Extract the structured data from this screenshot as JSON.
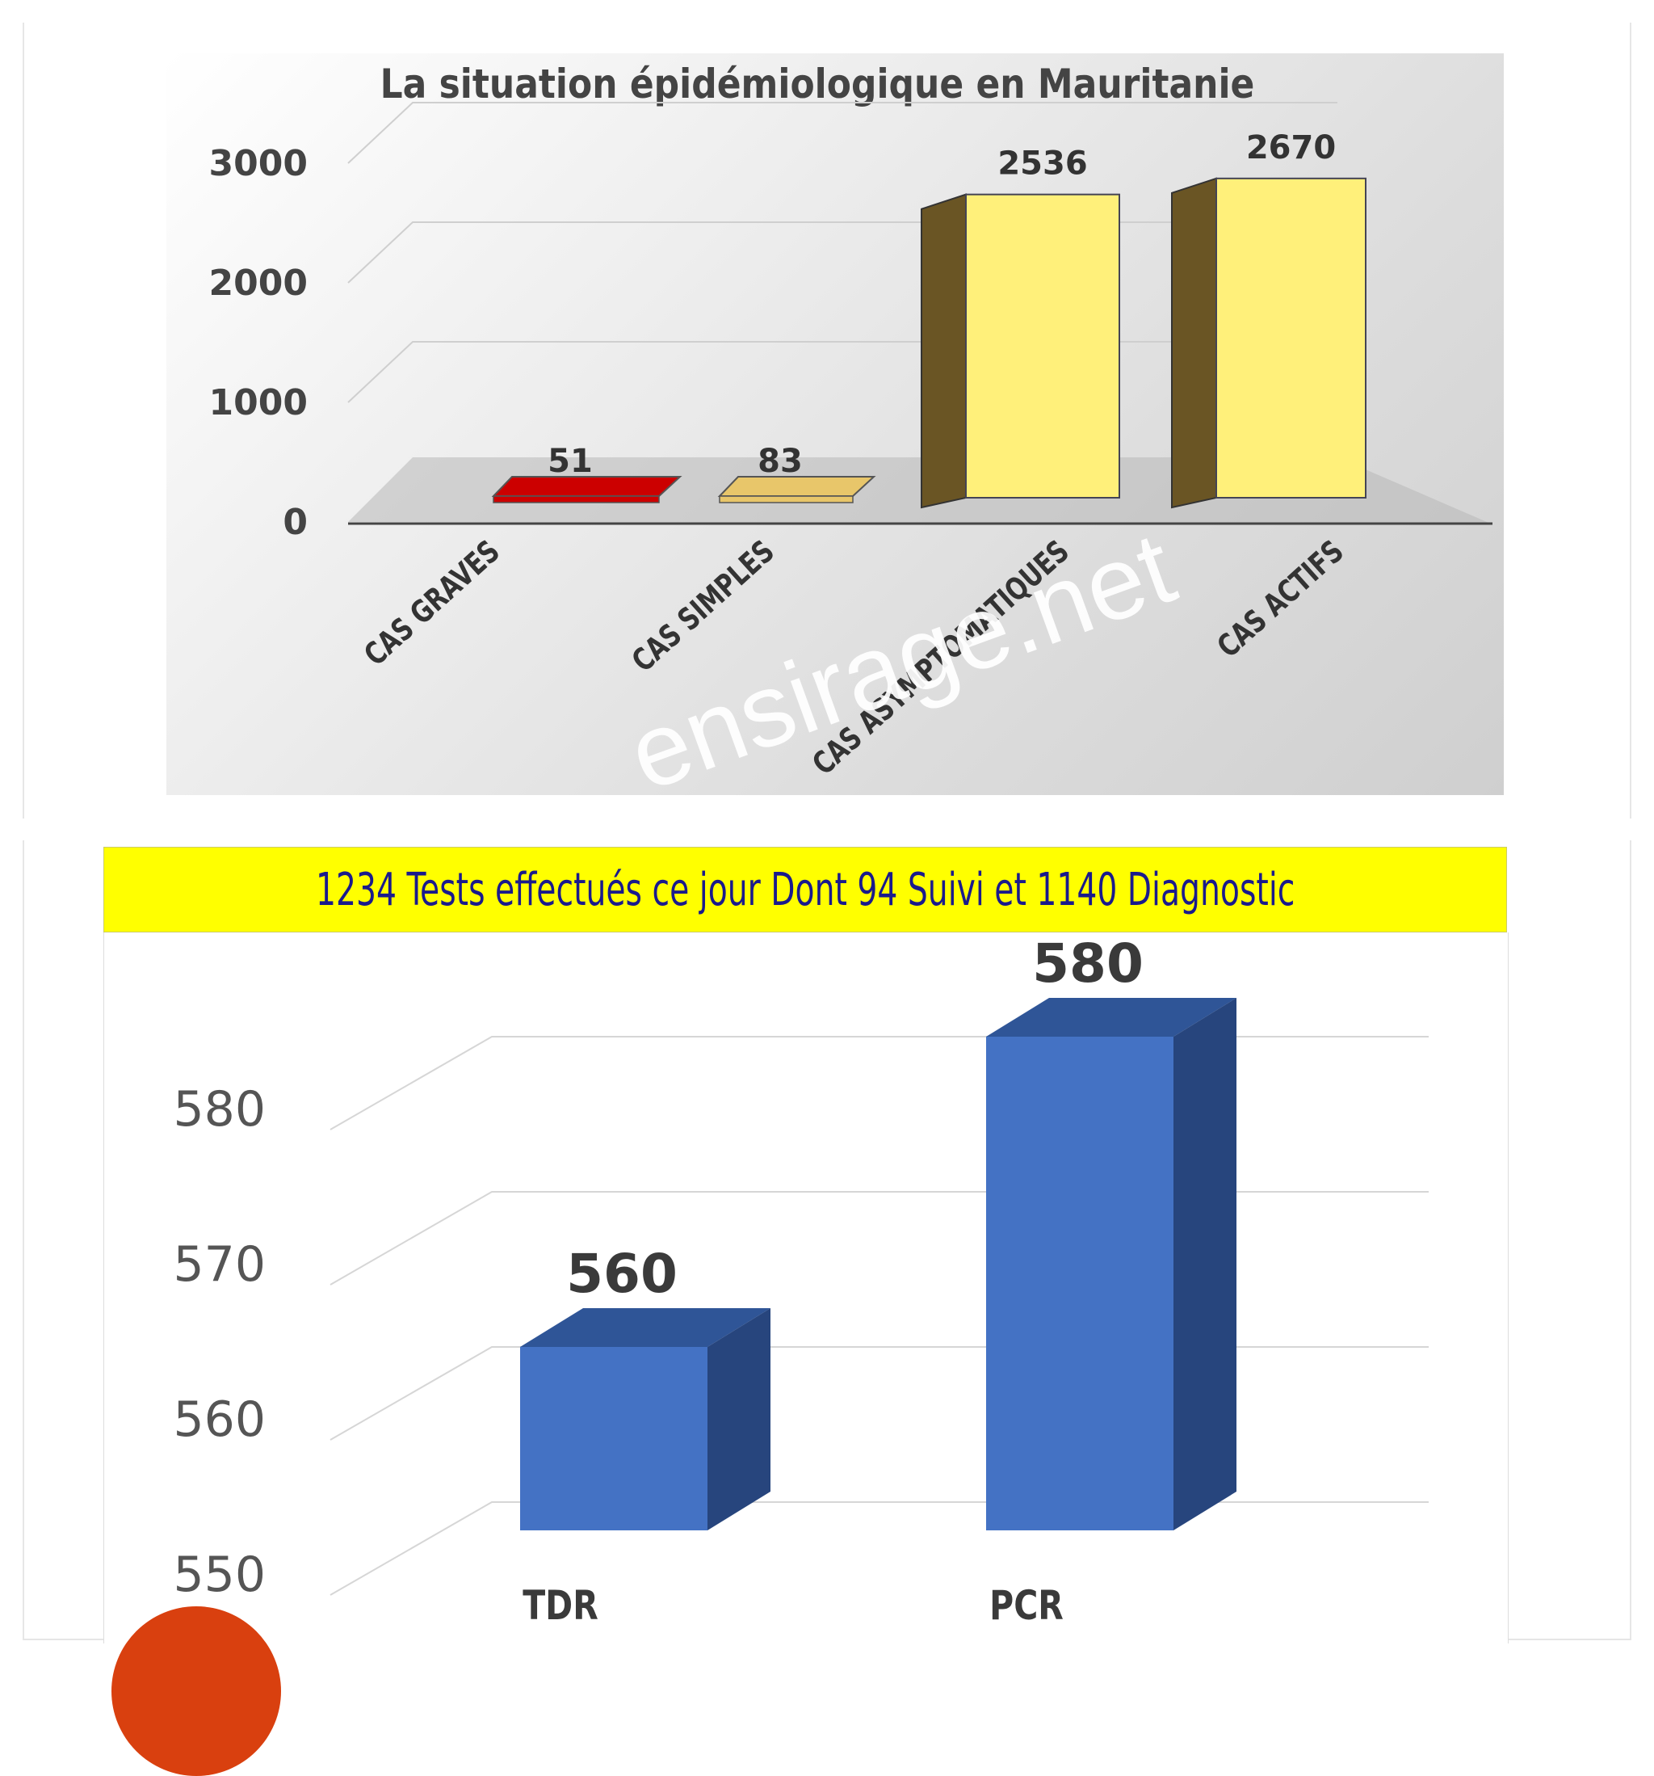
{
  "charts": {
    "top": {
      "title": "La situation épidémiologique en Mauritanie"
    },
    "bottom": {
      "banner": "1234 Tests effectués ce jour Dont 94 Suivi et 1140 Diagnostic"
    }
  },
  "watermark": "ensirage.net",
  "chart_data": [
    {
      "type": "bar",
      "title": "La situation épidémiologique en Mauritanie",
      "categories": [
        "CAS GRAVES",
        "CAS SIMPLES",
        "CAS ASYMPTOMATIQUES",
        "CAS ACTIFS"
      ],
      "values": [
        51,
        83,
        2536,
        2670
      ],
      "data_labels": [
        "51",
        "83",
        "2536",
        "2670"
      ],
      "y_ticks": [
        "0",
        "1000",
        "2000",
        "3000"
      ],
      "ylim": [
        0,
        3000
      ],
      "grid": true,
      "colors": [
        "#cc0000",
        "#e8c66a",
        "#fff07a",
        "#fff07a"
      ],
      "style": "3d"
    },
    {
      "type": "bar",
      "title": "1234 Tests effectués ce jour Dont 94 Suivi et 1140 Diagnostic",
      "categories": [
        "TDR",
        "PCR"
      ],
      "values": [
        560,
        580
      ],
      "data_labels": [
        "560",
        "580"
      ],
      "y_ticks": [
        "550",
        "560",
        "570",
        "580"
      ],
      "ylim": [
        550,
        582
      ],
      "grid": true,
      "colors": [
        "#4472c4",
        "#4472c4"
      ],
      "style": "3d"
    }
  ]
}
